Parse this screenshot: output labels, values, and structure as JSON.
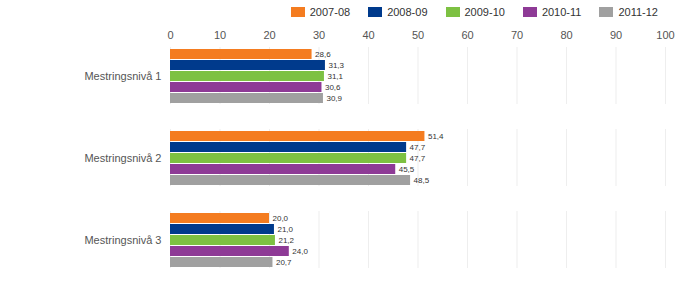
{
  "chart_data": {
    "type": "bar",
    "orientation": "horizontal",
    "categories": [
      "Mestringsnivå 1",
      "Mestringsnivå 2",
      "Mestringsnivå 3"
    ],
    "series": [
      {
        "name": "2007-08",
        "color": "#f47c20",
        "values": [
          28.6,
          51.4,
          20.0
        ],
        "value_labels": [
          "28,6",
          "51,4",
          "20,0"
        ]
      },
      {
        "name": "2008-09",
        "color": "#003a8c",
        "values": [
          31.3,
          47.7,
          21.0
        ],
        "value_labels": [
          "31,3",
          "47,7",
          "21,0"
        ]
      },
      {
        "name": "2009-10",
        "color": "#7dc142",
        "values": [
          31.1,
          47.7,
          21.2
        ],
        "value_labels": [
          "31,1",
          "47,7",
          "21,2"
        ]
      },
      {
        "name": "2010-11",
        "color": "#8e3a96",
        "values": [
          30.6,
          45.5,
          24.0
        ],
        "value_labels": [
          "30,6",
          "45,5",
          "24,0"
        ]
      },
      {
        "name": "2011-12",
        "color": "#a0a0a0",
        "values": [
          30.9,
          48.5,
          20.7
        ],
        "value_labels": [
          "30,9",
          "48,5",
          "20,7"
        ]
      }
    ],
    "xlim": [
      0,
      100
    ],
    "xticks": [
      0,
      10,
      20,
      30,
      40,
      50,
      60,
      70,
      80,
      90,
      100
    ],
    "grid": true,
    "data_labels": true,
    "legend": "top"
  }
}
